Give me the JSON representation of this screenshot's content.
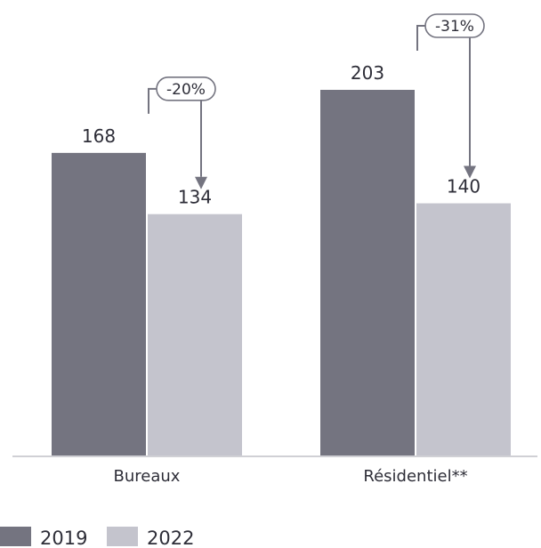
{
  "chart_data": {
    "type": "bar",
    "categories": [
      "Bureaux",
      "Résidentiel**"
    ],
    "series": [
      {
        "name": "2019",
        "values": [
          168,
          203
        ],
        "color": "#747480"
      },
      {
        "name": "2022",
        "values": [
          134,
          140
        ],
        "color": "#c4c4cd"
      }
    ],
    "value_labels": [
      [
        "168",
        "203"
      ],
      [
        "134",
        "140"
      ]
    ],
    "changes": [
      "-20%",
      "-31%"
    ],
    "ylim": [
      0,
      203
    ],
    "grid": false,
    "legend": {
      "position": "bottom-left",
      "entries": [
        "2019",
        "2022"
      ]
    },
    "title": "",
    "xlabel": "",
    "ylabel": ""
  }
}
